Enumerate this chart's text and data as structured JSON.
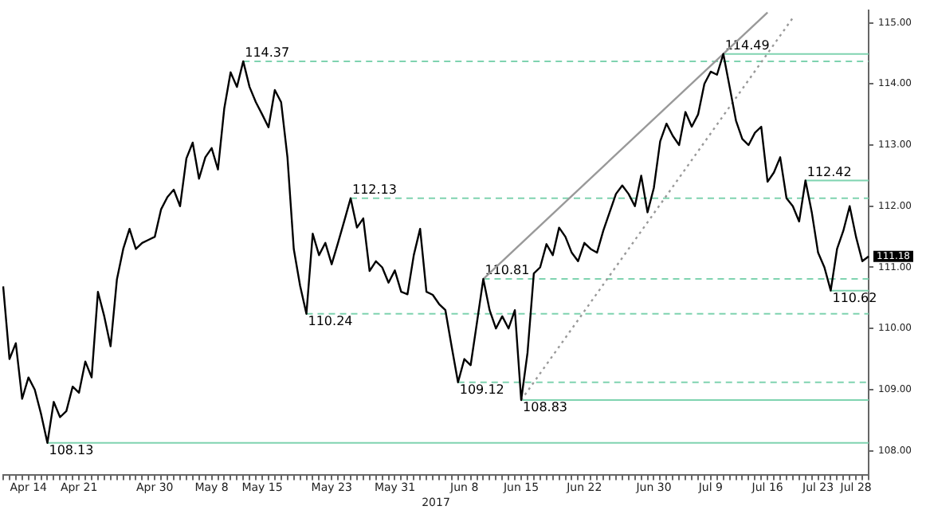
{
  "chart_data": {
    "type": "line",
    "xlabel": "2017",
    "categories": [
      null,
      null,
      null,
      null,
      "Apr 14",
      null,
      null,
      null,
      null,
      null,
      null,
      null,
      "Apr 21",
      null,
      null,
      null,
      null,
      null,
      null,
      null,
      null,
      null,
      null,
      null,
      "Apr 30",
      null,
      null,
      null,
      null,
      null,
      null,
      null,
      null,
      "May 8",
      null,
      null,
      null,
      null,
      null,
      null,
      null,
      "May 15",
      null,
      null,
      null,
      null,
      null,
      null,
      null,
      null,
      null,
      null,
      "May 23",
      null,
      null,
      null,
      null,
      null,
      null,
      null,
      null,
      null,
      "May 31",
      null,
      null,
      null,
      null,
      null,
      null,
      null,
      null,
      null,
      null,
      "Jun 8",
      null,
      null,
      null,
      null,
      null,
      null,
      null,
      null,
      "Jun 15",
      null,
      null,
      null,
      null,
      null,
      null,
      null,
      null,
      null,
      "Jun 22",
      null,
      null,
      null,
      null,
      null,
      null,
      null,
      null,
      null,
      null,
      "Jun 30",
      null,
      null,
      null,
      null,
      null,
      null,
      null,
      null,
      "Jul 9",
      null,
      null,
      null,
      null,
      null,
      null,
      null,
      null,
      "Jul 16",
      null,
      null,
      null,
      null,
      null,
      null,
      null,
      "Jul 23",
      null,
      null,
      null,
      null,
      null,
      "Jul 28",
      null,
      null
    ],
    "series": [
      {
        "color": "#000000",
        "values": [
          110.69,
          109.5,
          109.76,
          108.85,
          109.2,
          109.0,
          108.6,
          108.13,
          108.8,
          108.55,
          108.65,
          109.05,
          108.95,
          109.46,
          109.2,
          110.6,
          110.2,
          109.71,
          110.8,
          111.3,
          111.63,
          111.3,
          111.4,
          111.45,
          111.5,
          111.95,
          112.15,
          112.27,
          112.0,
          112.78,
          113.04,
          112.45,
          112.8,
          112.95,
          112.6,
          113.6,
          114.19,
          113.95,
          114.37,
          113.95,
          113.7,
          113.5,
          113.29,
          113.9,
          113.7,
          112.8,
          111.3,
          110.7,
          110.24,
          111.55,
          111.2,
          111.4,
          111.05,
          111.4,
          111.76,
          112.13,
          111.65,
          111.8,
          110.94,
          111.1,
          111.0,
          110.75,
          110.95,
          110.6,
          110.56,
          111.2,
          111.63,
          110.6,
          110.55,
          110.4,
          110.3,
          109.7,
          109.12,
          109.5,
          109.4,
          110.1,
          110.81,
          110.3,
          110.0,
          110.2,
          110.0,
          110.3,
          108.83,
          109.6,
          110.9,
          111.0,
          111.38,
          111.2,
          111.65,
          111.5,
          111.24,
          111.1,
          111.4,
          111.3,
          111.24,
          111.6,
          111.9,
          112.2,
          112.34,
          112.2,
          112.0,
          112.5,
          111.9,
          112.3,
          113.06,
          113.35,
          113.15,
          113.0,
          113.54,
          113.3,
          113.5,
          114.0,
          114.2,
          114.15,
          114.49,
          113.95,
          113.4,
          113.1,
          113.0,
          113.2,
          113.3,
          112.4,
          112.55,
          112.8,
          112.13,
          112.0,
          111.75,
          112.42,
          111.9,
          111.24,
          111.0,
          110.62,
          111.3,
          111.6,
          112.0,
          111.5,
          111.1,
          111.18
        ]
      },
      {
        "type": "line",
        "color": "#999999",
        "line_style": "solid",
        "values": [
          null,
          null,
          null,
          null,
          null,
          null,
          null,
          null,
          null,
          null,
          null,
          null,
          null,
          null,
          null,
          null,
          null,
          null,
          null,
          null,
          null,
          null,
          null,
          null,
          null,
          null,
          null,
          null,
          null,
          null,
          null,
          null,
          null,
          null,
          null,
          null,
          null,
          null,
          null,
          null,
          null,
          null,
          null,
          null,
          null,
          null,
          null,
          null,
          null,
          null,
          null,
          null,
          null,
          null,
          null,
          null,
          null,
          null,
          null,
          null,
          null,
          null,
          null,
          null,
          null,
          null,
          null,
          null,
          null,
          null,
          null,
          null,
          null,
          null,
          null,
          null,
          110.81,
          null,
          null,
          null,
          null,
          null,
          null,
          null,
          null,
          null,
          null,
          null,
          null,
          null,
          null,
          null,
          null,
          null,
          null,
          null,
          null,
          null,
          null,
          null,
          null,
          null,
          null,
          null,
          null,
          null,
          null,
          null,
          null,
          null,
          null,
          null,
          null,
          null,
          null,
          null,
          null,
          null,
          null,
          null,
          null,
          115.17,
          null,
          null,
          null,
          null,
          null,
          null,
          null,
          null,
          null,
          null,
          null,
          null,
          null,
          null,
          null,
          null
        ]
      },
      {
        "type": "line",
        "color": "#999999",
        "line_style": "dotted",
        "values": [
          null,
          null,
          null,
          null,
          null,
          null,
          null,
          null,
          null,
          null,
          null,
          null,
          null,
          null,
          null,
          null,
          null,
          null,
          null,
          null,
          null,
          null,
          null,
          null,
          null,
          null,
          null,
          null,
          null,
          null,
          null,
          null,
          null,
          null,
          null,
          null,
          null,
          null,
          null,
          null,
          null,
          null,
          null,
          null,
          null,
          null,
          null,
          null,
          null,
          null,
          null,
          null,
          null,
          null,
          null,
          null,
          null,
          null,
          null,
          null,
          null,
          null,
          null,
          null,
          null,
          null,
          null,
          null,
          null,
          null,
          null,
          null,
          null,
          null,
          null,
          null,
          null,
          null,
          null,
          null,
          null,
          null,
          108.83,
          null,
          null,
          null,
          null,
          null,
          null,
          null,
          null,
          null,
          null,
          null,
          null,
          null,
          null,
          null,
          null,
          null,
          null,
          null,
          null,
          null,
          null,
          null,
          null,
          null,
          null,
          null,
          null,
          null,
          null,
          null,
          null,
          null,
          null,
          null,
          null,
          null,
          null,
          null,
          null,
          null,
          null,
          115.08,
          null,
          null,
          null,
          null,
          null,
          null,
          null,
          null,
          null,
          null,
          null,
          null
        ]
      }
    ],
    "ylim": [
      107.6,
      115.2
    ],
    "yticks": [
      {
        "value": 108,
        "label": "108.00"
      },
      {
        "value": 109,
        "label": "109.00"
      },
      {
        "value": 110,
        "label": "110.00"
      },
      {
        "value": 111,
        "label": "111.00"
      },
      {
        "value": 112,
        "label": "112.00"
      },
      {
        "value": 113,
        "label": "113.00"
      },
      {
        "value": 114,
        "label": "114.00"
      },
      {
        "value": 115,
        "label": "115.00"
      }
    ],
    "ref_lines": [
      {
        "axis": "y",
        "value": 114.37,
        "label": "114.37",
        "color": "#7fd3b0",
        "line_style": "dashed"
      },
      {
        "axis": "y",
        "value": 112.13,
        "label": "112.13",
        "color": "#7fd3b0",
        "line_style": "dashed"
      },
      {
        "axis": "y",
        "value": 110.81,
        "label": "110.81",
        "color": "#7fd3b0",
        "line_style": "dashed"
      },
      {
        "axis": "y",
        "value": 110.24,
        "label": "110.24",
        "color": "#7fd3b0",
        "line_style": "dashed"
      },
      {
        "axis": "y",
        "value": 109.12,
        "label": "109.12",
        "color": "#7fd3b0",
        "line_style": "dashed"
      },
      {
        "axis": "y",
        "value": 114.49,
        "label": "114.49",
        "color": "#7fd3b0",
        "line_style": "solid"
      },
      {
        "axis": "y",
        "value": 112.42,
        "label": "112.42",
        "color": "#7fd3b0",
        "line_style": "solid"
      },
      {
        "axis": "y",
        "value": 110.62,
        "label": "110.62",
        "color": "#7fd3b0",
        "line_style": "solid"
      },
      {
        "axis": "y",
        "value": 108.83,
        "label": "108.83",
        "color": "#7fd3b0",
        "line_style": "solid"
      },
      {
        "axis": "y",
        "value": 108.13,
        "label": "108.13",
        "color": "#7fd3b0",
        "line_style": "solid"
      }
    ],
    "annotations": [
      "111.18"
    ],
    "grid": false,
    "legend": false,
    "marker": "none",
    "line_style": "solid"
  }
}
